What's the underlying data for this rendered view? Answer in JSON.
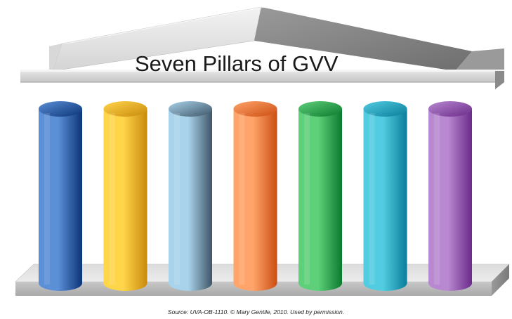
{
  "title": "Seven Pillars of GVV",
  "caption": "Source: UVA-OB-1110.  © Mary Gentile, 2010. Used by permission.",
  "pillars": [
    {
      "color_light": "#5b8fd6",
      "color_dark": "#0c3478"
    },
    {
      "color_light": "#ffd54a",
      "color_dark": "#c98a0c"
    },
    {
      "color_light": "#a9d3ea",
      "color_dark": "#3f5568"
    },
    {
      "color_light": "#ffa46a",
      "color_dark": "#cc4e12"
    },
    {
      "color_light": "#5fd07a",
      "color_dark": "#0b7a2e"
    },
    {
      "color_light": "#52cce0",
      "color_dark": "#0a7d9b"
    },
    {
      "color_light": "#b889d0",
      "color_dark": "#6a2a8a"
    }
  ]
}
